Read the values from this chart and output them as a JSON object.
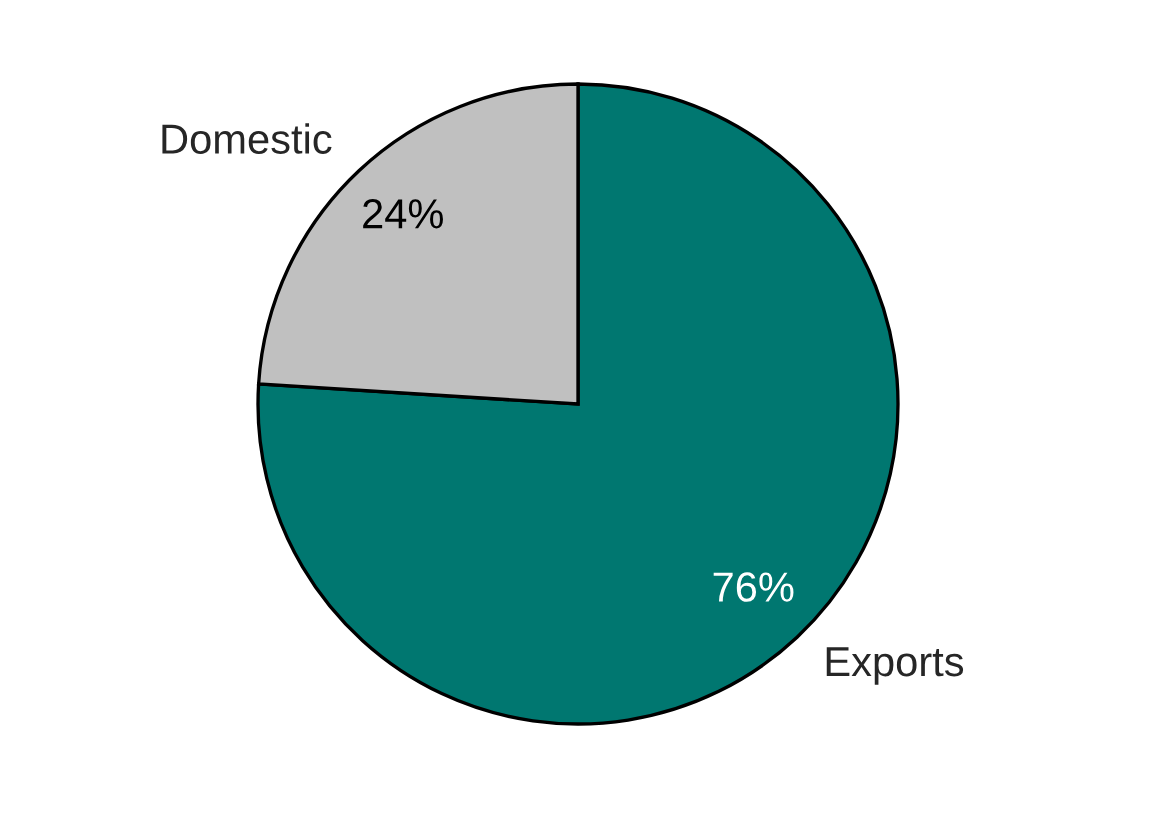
{
  "chart_data": {
    "type": "pie",
    "categories": [
      "Exports",
      "Domestic"
    ],
    "values": [
      76,
      24
    ],
    "colors": [
      "#007770",
      "#c0c0c0"
    ],
    "value_labels": [
      "76%",
      "24%"
    ],
    "legend": false
  }
}
